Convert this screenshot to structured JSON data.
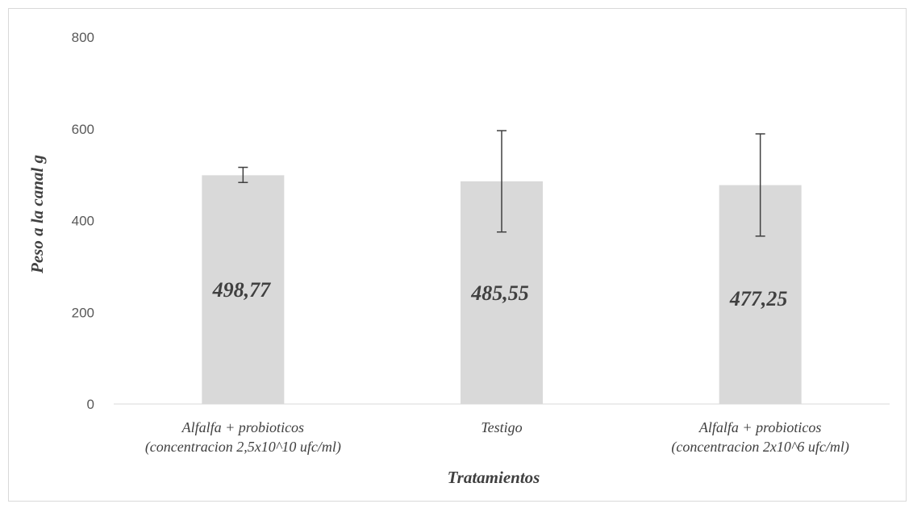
{
  "chart_data": {
    "type": "bar",
    "title": "",
    "xlabel": "Tratamientos",
    "ylabel": "Peso a la canal g",
    "ylim": [
      0,
      800
    ],
    "yticks": [
      0,
      200,
      400,
      600,
      800
    ],
    "grid": false,
    "legend": "none",
    "bar_color": "#d9d9d9",
    "error_bar_color": "#404040",
    "categories": [
      [
        "Alfalfa + probioticos",
        "(concentracion 2,5x10^10 ufc/ml)"
      ],
      [
        "Testigo"
      ],
      [
        "Alfalfa + probioticos",
        "(concentracion 2x10^6 ufc/ml)"
      ]
    ],
    "values": [
      498.77,
      485.55,
      477.25
    ],
    "data_labels": [
      "498,77",
      "485,55",
      "477,25"
    ],
    "error_bars": [
      {
        "low": 483,
        "high": 516
      },
      {
        "low": 375,
        "high": 596
      },
      {
        "low": 366,
        "high": 589
      }
    ]
  }
}
